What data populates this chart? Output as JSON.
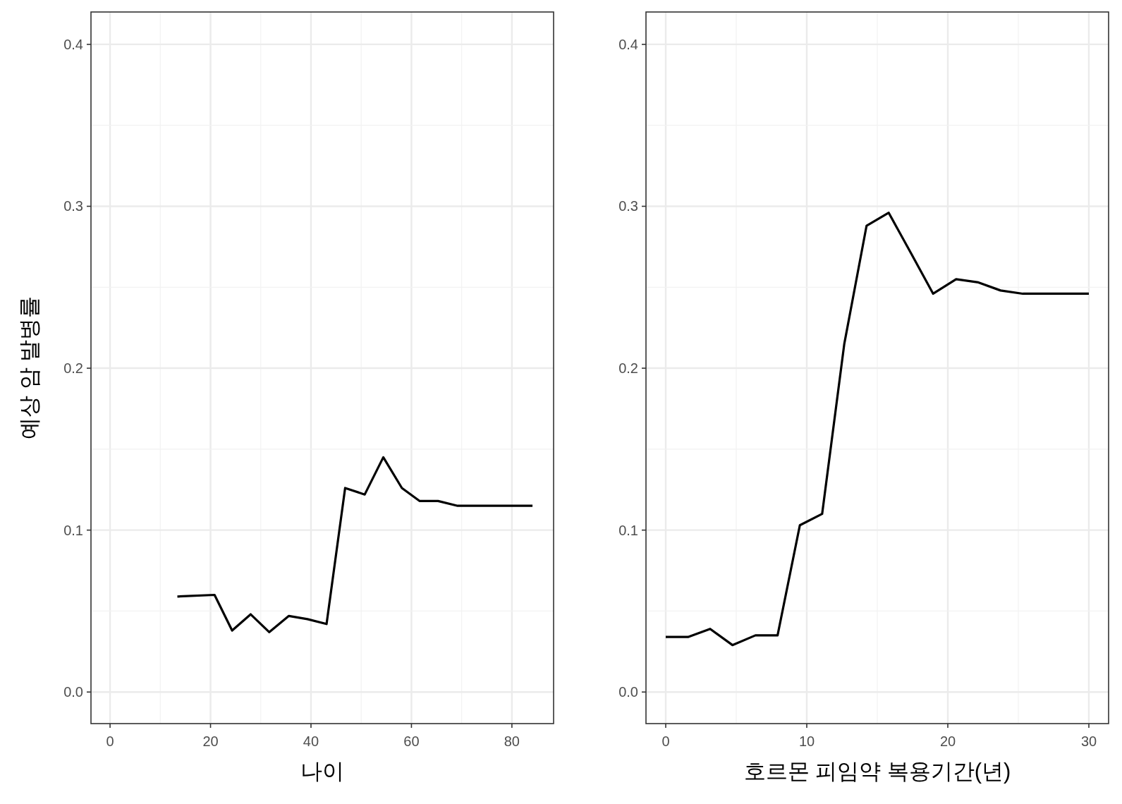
{
  "chart_data": [
    {
      "type": "line",
      "ylabel": "예상 암 발병률",
      "xlabel": "나이",
      "xlim": [
        -3.8,
        88.3
      ],
      "ylim": [
        -0.0195,
        0.42
      ],
      "xticks": [
        0,
        20,
        40,
        60,
        80
      ],
      "yticks": [
        {
          "value": 0,
          "label": "0.0"
        },
        0.1,
        0.2,
        0.3,
        0.4
      ],
      "grid": true,
      "series": [
        {
          "color": "#000000",
          "x": [
            13.4,
            20.8,
            24.3,
            28.0,
            31.7,
            35.6,
            39.3,
            43.1,
            46.8,
            50.7,
            54.4,
            58.1,
            61.6,
            65.3,
            69.2,
            84.1
          ],
          "values": [
            0.059,
            0.06,
            0.038,
            0.048,
            0.037,
            0.047,
            0.045,
            0.042,
            0.126,
            0.122,
            0.145,
            0.126,
            0.118,
            0.118,
            0.115,
            0.115
          ]
        }
      ]
    },
    {
      "type": "line",
      "xlabel": "호르몬 피임약 복용기간(년)",
      "xlim": [
        -1.4,
        31.4
      ],
      "ylim": [
        -0.0195,
        0.42
      ],
      "xticks": [
        0,
        10,
        20,
        30
      ],
      "yticks": [
        {
          "value": 0,
          "label": "0.0"
        },
        0.1,
        0.2,
        0.3,
        0.4
      ],
      "grid": true,
      "series": [
        {
          "color": "#000000",
          "x": [
            0,
            1.58,
            3.15,
            4.73,
            6.36,
            7.93,
            9.51,
            11.09,
            12.66,
            14.24,
            15.81,
            17.39,
            18.96,
            20.59,
            22.17,
            23.74,
            25.32,
            30
          ],
          "values": [
            0.034,
            0.034,
            0.039,
            0.029,
            0.035,
            0.035,
            0.103,
            0.11,
            0.215,
            0.288,
            0.296,
            0.271,
            0.246,
            0.255,
            0.253,
            0.248,
            0.246,
            0.246
          ]
        }
      ]
    }
  ]
}
